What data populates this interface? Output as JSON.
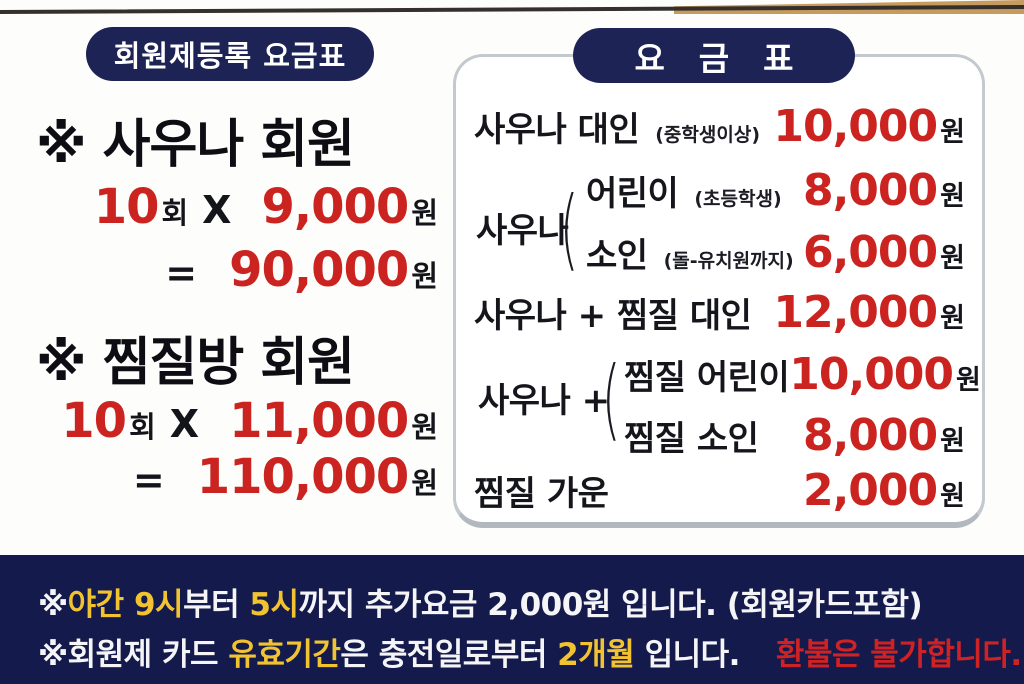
{
  "colors": {
    "navy_badge": "#1d2355",
    "navy_bar": "#141a4b",
    "price_red": "#cb2420",
    "notice_yellow": "#f2c331",
    "notice_red": "#cf2224",
    "box_border": "#c3c9cf",
    "text_black": "#15151c"
  },
  "left_panel": {
    "badge": "회원제등록 요금표",
    "sections": [
      {
        "heading": "※ 사우나 회원",
        "count": "10",
        "count_unit": "회",
        "times": "X",
        "unit_price": "9,000",
        "unit_price_won": "원",
        "equals": "=",
        "total": "90,000",
        "total_won": "원"
      },
      {
        "heading": "※ 찜질방 회원",
        "count": "10",
        "count_unit": "회",
        "times": "X",
        "unit_price": "11,000",
        "unit_price_won": "원",
        "equals": "=",
        "total": "110,000",
        "total_won": "원"
      }
    ]
  },
  "price_table": {
    "badge": "요 금 표",
    "rows": [
      {
        "label": "사우나  대인",
        "note": "(중학생이상)",
        "price": "10,000",
        "unit": "원"
      },
      {
        "group_label": "사우나",
        "bracket": "(",
        "items": [
          {
            "label": "어린이",
            "note": "(초등학생)",
            "price": "8,000",
            "unit": "원"
          },
          {
            "label": "소인",
            "note": "(돌-유치원까지)",
            "price": "6,000",
            "unit": "원"
          }
        ]
      },
      {
        "label": "사우나 +  찜질 대인",
        "price": "12,000",
        "unit": "원"
      },
      {
        "group_label": "사우나 +",
        "bracket": "(",
        "items": [
          {
            "label": "찜질 어린이",
            "price": "10,000",
            "unit": "원"
          },
          {
            "label": "찜질 소인",
            "price": "8,000",
            "unit": "원"
          }
        ]
      },
      {
        "label": "찜질 가운",
        "price": "2,000",
        "unit": "원"
      }
    ]
  },
  "notices": {
    "line1": [
      "※",
      "야간 9시",
      "부터 ",
      "5시",
      "까지 추가요금 2,000원 입니다. (회원카드포함)"
    ],
    "line2": [
      "※회원제 카드 ",
      "유효기간",
      "은 충전일로부터 ",
      "2개월",
      " 입니다.",
      "환불은 불가합니다."
    ]
  }
}
